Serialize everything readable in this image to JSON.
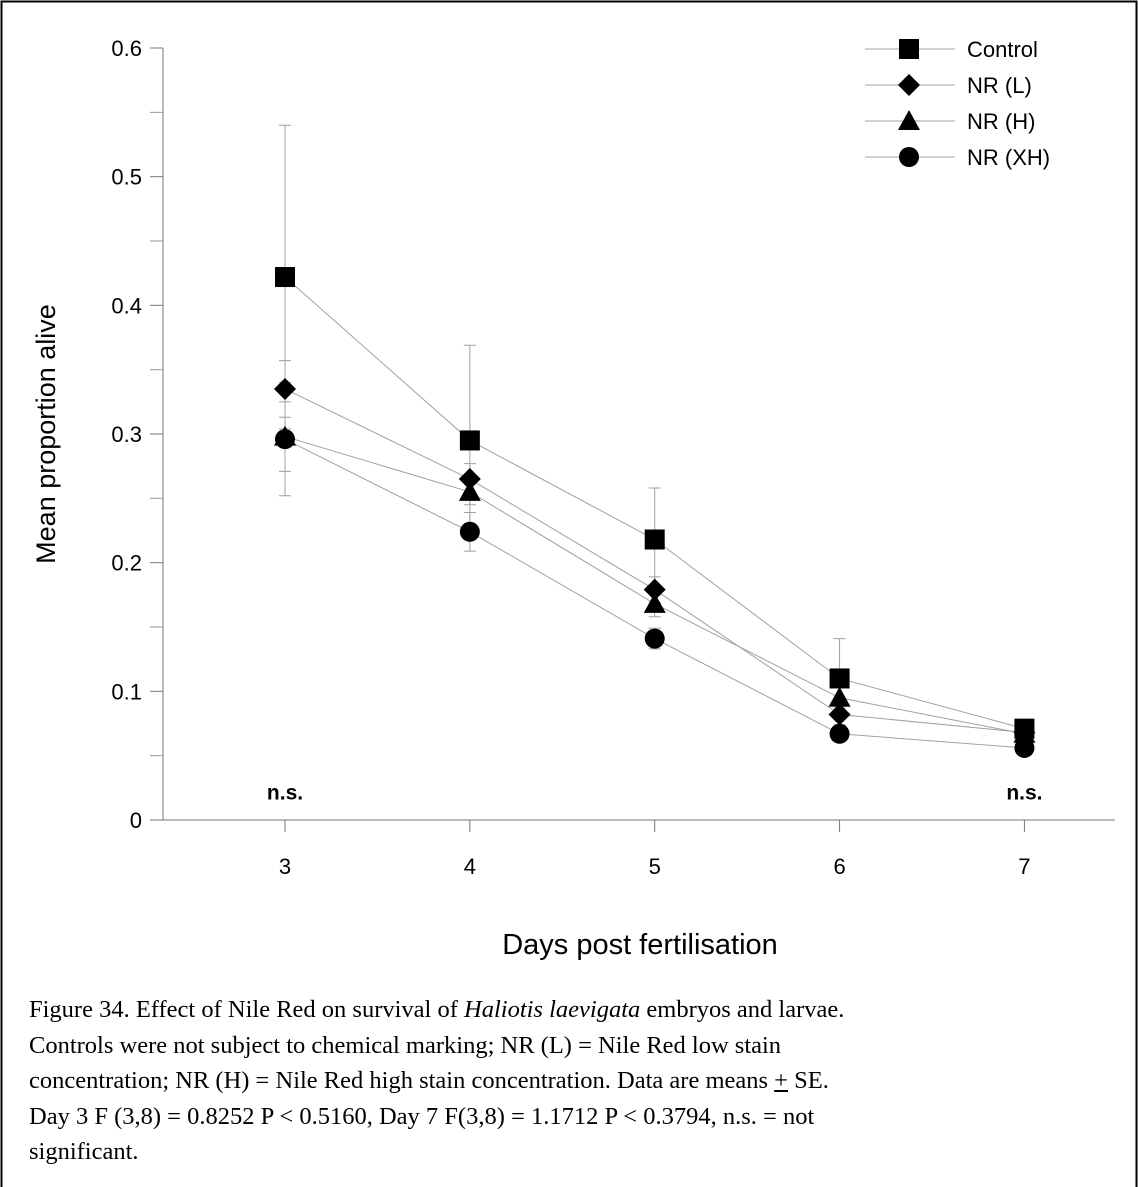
{
  "chart_data": {
    "type": "line",
    "xlabel": "Days post fertilisation",
    "ylabel": "Mean proportion alive",
    "x": [
      3,
      4,
      5,
      6,
      7
    ],
    "xlim": [
      2.34,
      7.49
    ],
    "xticks": [
      3,
      4,
      5,
      6,
      7
    ],
    "ylim": [
      0,
      0.6
    ],
    "yticks": [
      0,
      0.1,
      0.2,
      0.3,
      0.4,
      0.5,
      0.6
    ],
    "yminor_ticks": [
      0.05,
      0.15,
      0.25,
      0.35,
      0.45,
      0.55
    ],
    "grid": false,
    "legend": "upper right",
    "line_color": "#a0a0a0",
    "series": [
      {
        "name": "Control",
        "color": "#000000",
        "marker": "square",
        "values": [
          0.422,
          0.295,
          0.218,
          0.11,
          0.071
        ],
        "errors": [
          0.118,
          0.074,
          0.04,
          0.031,
          0.005
        ]
      },
      {
        "name": "NR (L)",
        "color": "#000000",
        "marker": "diamond",
        "values": [
          0.335,
          0.265,
          0.179,
          0.082,
          0.068
        ],
        "errors": [
          0.022,
          0.012,
          0.01,
          0.008,
          0.004
        ]
      },
      {
        "name": "NR (H)",
        "color": "#000000",
        "marker": "triangle",
        "values": [
          0.298,
          0.255,
          0.168,
          0.095,
          0.067
        ],
        "errors": [
          0.027,
          0.01,
          0.01,
          0.008,
          0.004
        ]
      },
      {
        "name": "NR (XH)",
        "color": "#000000",
        "marker": "circle",
        "values": [
          0.296,
          0.224,
          0.141,
          0.067,
          0.056
        ],
        "errors": [
          0.044,
          0.015,
          0.008,
          0.006,
          0.004
        ]
      }
    ],
    "annotations": [
      {
        "text": "n.s.",
        "x": 3,
        "y": 0.022
      },
      {
        "text": "n.s.",
        "x": 7,
        "y": 0.022
      }
    ]
  },
  "caption_lines": [
    [
      {
        "text": "Figure 34. Effect of Nile Red on survival of "
      },
      {
        "text": "Haliotis laevigata",
        "style": "italic"
      },
      {
        "text": " embryos and larvae."
      }
    ],
    [
      {
        "text": "Controls were not subject to chemical marking; NR (L) = Nile Red low stain"
      }
    ],
    [
      {
        "text": "concentration; NR (H) = Nile Red high stain concentration. Data are means "
      },
      {
        "text": "+",
        "style": "underline"
      },
      {
        "text": " SE."
      }
    ],
    [
      {
        "text": "Day 3 F (3,8) = 0.8252 P < 0.5160, Day 7 F(3,8) = 1.1712 P < 0.3794, n.s. = not"
      }
    ],
    [
      {
        "text": "significant."
      }
    ]
  ]
}
